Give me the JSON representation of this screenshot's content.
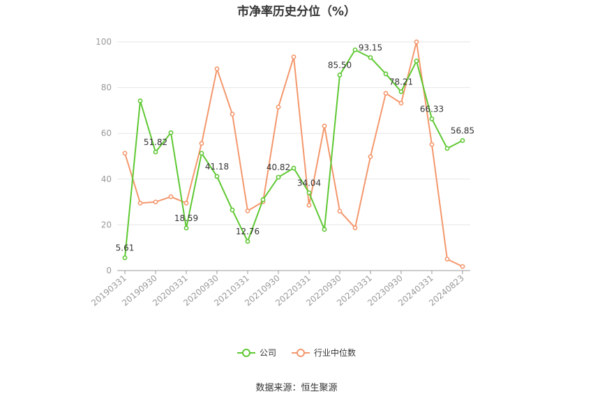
{
  "chart_data": {
    "type": "line",
    "title": "市净率历史分位（%）",
    "x": [
      "20190331",
      "20190630",
      "20190930",
      "20191231",
      "20200331",
      "20200630",
      "20200930",
      "20201231",
      "20210331",
      "20210630",
      "20210930",
      "20211231",
      "20220331",
      "20220630",
      "20220930",
      "20221231",
      "20230331",
      "20230630",
      "20230930",
      "20231231",
      "20240331",
      "20240630",
      "20240823"
    ],
    "x_tick_labels": [
      "20190331",
      "20190930",
      "20200331",
      "20200930",
      "20210331",
      "20210930",
      "20220331",
      "20220930",
      "20230331",
      "20230930",
      "20240331",
      "20240823"
    ],
    "ylim": [
      0,
      100
    ],
    "yticks": [
      0,
      20,
      40,
      60,
      80,
      100
    ],
    "grid": true,
    "legend_position": "bottom",
    "series": [
      {
        "name": "公司",
        "color": "#5ec832",
        "values": [
          5.61,
          74.2,
          51.82,
          60.3,
          18.59,
          51.3,
          41.18,
          26.5,
          12.76,
          31.0,
          40.82,
          44.8,
          34.04,
          18.0,
          85.5,
          96.5,
          93.15,
          86.0,
          78.21,
          91.6,
          66.33,
          53.4,
          56.85
        ],
        "labels": [
          "5.61",
          null,
          "51.82",
          null,
          "18.59",
          null,
          "41.18",
          null,
          "12.76",
          null,
          "40.82",
          null,
          "34.04",
          null,
          "85.50",
          null,
          "93.15",
          null,
          "78.21",
          null,
          "66.33",
          null,
          "56.85"
        ]
      },
      {
        "name": "行业中位数",
        "color": "#f4976c",
        "values": [
          51.3,
          29.5,
          30.0,
          32.3,
          29.5,
          55.6,
          88.2,
          68.4,
          26.1,
          30.1,
          71.5,
          93.4,
          28.6,
          63.2,
          26.0,
          18.7,
          49.8,
          77.5,
          73.2,
          100.0,
          55.1,
          5.0,
          1.8
        ]
      }
    ]
  },
  "source_text": "数据来源：恒生聚源"
}
